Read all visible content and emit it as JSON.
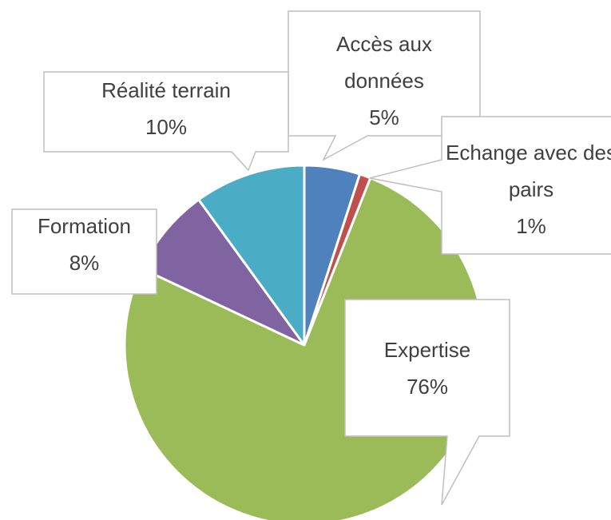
{
  "chart_data": {
    "type": "pie",
    "categories": [
      "Accès aux données",
      "Echange avec des pairs",
      "Expertise",
      "Formation",
      "Réalité terrain"
    ],
    "values": [
      5,
      1,
      76,
      8,
      10
    ],
    "value_labels": [
      "5%",
      "1%",
      "76%",
      "8%",
      "10%"
    ],
    "colors": [
      "#4f81bd",
      "#c0504d",
      "#9bbb59",
      "#8064a2",
      "#4bacc6"
    ]
  }
}
